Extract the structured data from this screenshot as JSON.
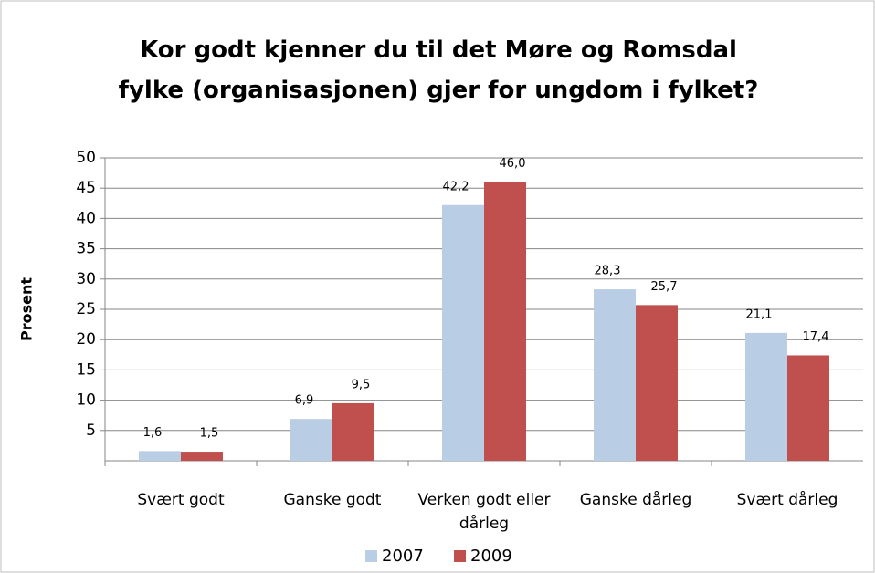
{
  "chart_data": {
    "type": "bar",
    "title": "Kor godt kjenner du til det Møre og Romsdal fylke (organisasjonen) gjer for ungdom i fylket?",
    "y_label": "Prosent",
    "categories": [
      "Svært godt",
      "Ganske godt",
      "Verken godt eller dårleg",
      "Ganske dårleg",
      "Svært dårleg"
    ],
    "series": [
      {
        "name": "2007",
        "color": "#b9cde5",
        "values": [
          1.6,
          6.9,
          42.2,
          28.3,
          21.1
        ],
        "value_labels": [
          "1,6",
          "6,9",
          "42,2",
          "28,3",
          "21,1"
        ]
      },
      {
        "name": "2009",
        "color": "#c0504d",
        "values": [
          1.5,
          9.5,
          46.0,
          25.7,
          17.4
        ],
        "value_labels": [
          "1,5",
          "9,5",
          "46,0",
          "25,7",
          "17,4"
        ]
      }
    ],
    "ylim": [
      0,
      50
    ],
    "yticks": [
      5,
      10,
      15,
      20,
      25,
      30,
      35,
      40,
      45,
      50
    ],
    "grid": true,
    "legend": "bottom"
  }
}
